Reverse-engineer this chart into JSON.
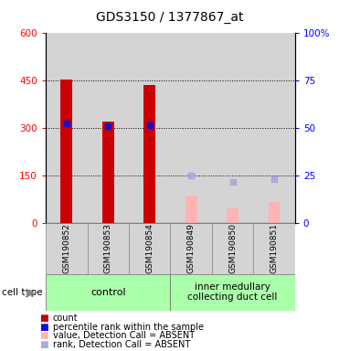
{
  "title": "GDS3150 / 1377867_at",
  "samples": [
    "GSM190852",
    "GSM190853",
    "GSM190854",
    "GSM190849",
    "GSM190850",
    "GSM190851"
  ],
  "group_labels": [
    "control",
    "inner medullary\ncollecting duct cell"
  ],
  "present": [
    true,
    true,
    true,
    false,
    false,
    false
  ],
  "count_values": [
    455,
    320,
    437,
    85,
    45,
    65
  ],
  "rank_values": [
    315,
    305,
    308,
    150,
    130,
    137
  ],
  "ylim_left": [
    0,
    600
  ],
  "ylim_right": [
    0,
    100
  ],
  "left_ticks": [
    0,
    150,
    300,
    450,
    600
  ],
  "right_ticks": [
    0,
    25,
    50,
    75,
    100
  ],
  "count_color_present": "#cc0000",
  "count_color_absent": "#ffb3b3",
  "rank_color_present": "#1111cc",
  "rank_color_absent": "#aaaadd",
  "group_bg": "#aaffaa",
  "sample_bg": "#d4d4d4",
  "title_fontsize": 10,
  "tick_fontsize": 7.5,
  "legend_fontsize": 7,
  "sample_fontsize": 6.5
}
